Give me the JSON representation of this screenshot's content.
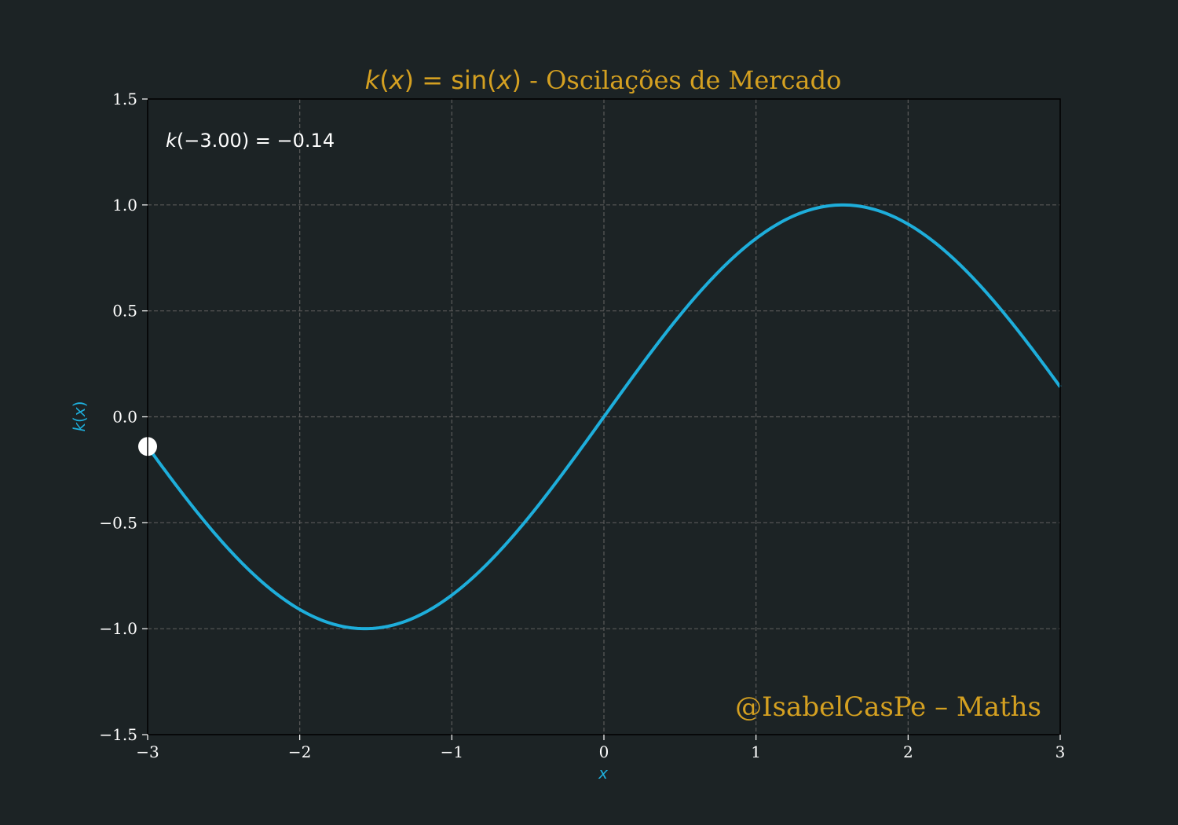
{
  "chart_data": {
    "type": "line",
    "title": {
      "k": "k",
      "lp": "(",
      "x": "x",
      "rp": ")",
      "eq": " = sin(",
      "x2": "x",
      "rp2": ")",
      "rest": " - Oscilações de Mercado"
    },
    "xlabel": "x",
    "ylabel": {
      "k": "k",
      "lp": "(",
      "x": "x",
      "rp": ")"
    },
    "xlim": [
      -3,
      3
    ],
    "ylim": [
      -1.5,
      1.5
    ],
    "x_ticks": [
      -3,
      -2,
      -1,
      0,
      1,
      2,
      3
    ],
    "x_tick_labels": [
      "−3",
      "−2",
      "−1",
      "0",
      "1",
      "2",
      "3"
    ],
    "y_ticks": [
      -1.5,
      -1.0,
      -0.5,
      0.0,
      0.5,
      1.0,
      1.5
    ],
    "y_tick_labels": [
      "−1.5",
      "−1.0",
      "−0.5",
      "0.0",
      "0.5",
      "1.0",
      "1.5"
    ],
    "grid": true,
    "series": [
      {
        "function": "sin",
        "color": "#1eaedb",
        "x": [
          -3.0,
          -2.75,
          -2.5,
          -2.25,
          -2.0,
          -1.75,
          -1.5708,
          -1.5,
          -1.25,
          -1.0,
          -0.75,
          -0.5,
          -0.25,
          0.0,
          0.25,
          0.5,
          0.75,
          1.0,
          1.25,
          1.5,
          1.5708,
          1.75,
          2.0,
          2.25,
          2.5,
          2.75,
          3.0
        ],
        "y": [
          -0.141,
          -0.382,
          -0.598,
          -0.778,
          -0.909,
          -0.984,
          -1.0,
          -0.997,
          -0.949,
          -0.841,
          -0.682,
          -0.479,
          -0.247,
          0.0,
          0.247,
          0.479,
          0.682,
          0.841,
          0.949,
          0.997,
          1.0,
          0.984,
          0.909,
          0.778,
          0.598,
          0.382,
          0.141
        ]
      }
    ],
    "marker": {
      "x": -3.0,
      "y": -0.14,
      "color": "#ffffff"
    },
    "annotation": {
      "k": "k",
      "text": "(−3.00) = −0.14"
    },
    "watermark": "@IsabelCasPe – Maths",
    "colors": {
      "background": "#1c2325",
      "title": "#d4a021",
      "line": "#1eaedb",
      "grid": "#5a5a5a",
      "text": "#ffffff"
    }
  }
}
